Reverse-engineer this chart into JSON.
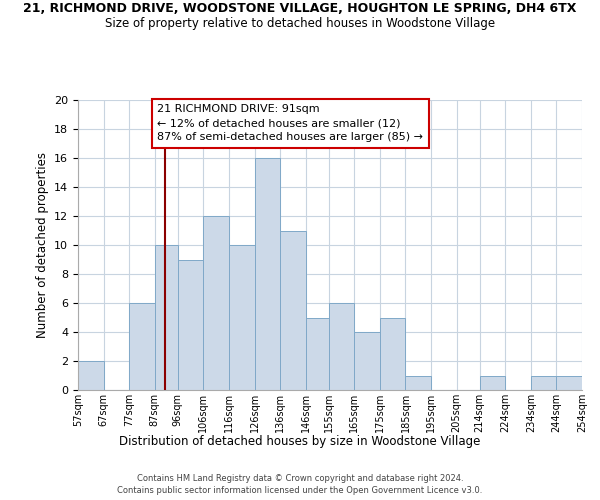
{
  "title_line1": "21, RICHMOND DRIVE, WOODSTONE VILLAGE, HOUGHTON LE SPRING, DH4 6TX",
  "title_line2": "Size of property relative to detached houses in Woodstone Village",
  "xlabel": "Distribution of detached houses by size in Woodstone Village",
  "ylabel": "Number of detached properties",
  "bar_color": "#ccd9e8",
  "bar_edgecolor": "#7fa8c8",
  "vline_x": 91,
  "vline_color": "#8b0000",
  "annotation_text": "21 RICHMOND DRIVE: 91sqm\n← 12% of detached houses are smaller (12)\n87% of semi-detached houses are larger (85) →",
  "annotation_box_edgecolor": "#cc0000",
  "bins": [
    57,
    67,
    77,
    87,
    96,
    106,
    116,
    126,
    136,
    146,
    155,
    165,
    175,
    185,
    195,
    205,
    214,
    224,
    234,
    244,
    254
  ],
  "counts": [
    2,
    0,
    6,
    10,
    9,
    12,
    10,
    16,
    11,
    5,
    6,
    4,
    5,
    1,
    0,
    0,
    1,
    0,
    1,
    1
  ],
  "tick_labels": [
    "57sqm",
    "67sqm",
    "77sqm",
    "87sqm",
    "96sqm",
    "106sqm",
    "116sqm",
    "126sqm",
    "136sqm",
    "146sqm",
    "155sqm",
    "165sqm",
    "175sqm",
    "185sqm",
    "195sqm",
    "205sqm",
    "214sqm",
    "224sqm",
    "234sqm",
    "244sqm",
    "254sqm"
  ],
  "ylim": [
    0,
    20
  ],
  "yticks": [
    0,
    2,
    4,
    6,
    8,
    10,
    12,
    14,
    16,
    18,
    20
  ],
  "footer_line1": "Contains HM Land Registry data © Crown copyright and database right 2024.",
  "footer_line2": "Contains public sector information licensed under the Open Government Licence v3.0.",
  "background_color": "#ffffff",
  "grid_color": "#c8d4e0"
}
